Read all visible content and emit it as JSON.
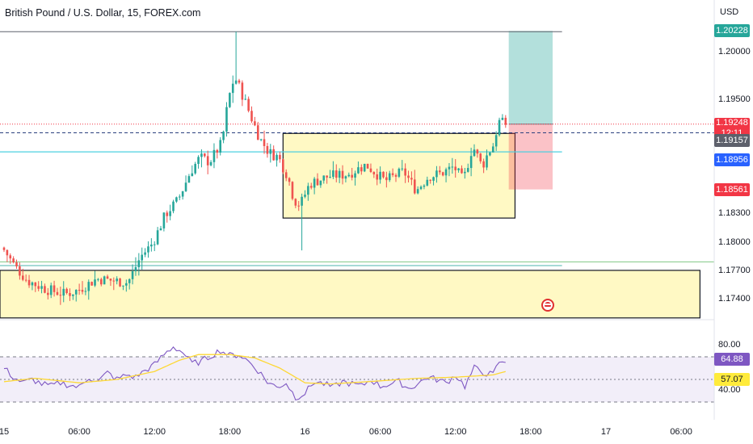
{
  "header": {
    "title": "British Pound / U.S. Dollar, 15, FOREX.com",
    "currency": "USD"
  },
  "price_labels": [
    {
      "value": "1.20228",
      "color": "#26a69a"
    },
    {
      "value": "1.19248",
      "sub": "12:11",
      "color": "#f23645"
    },
    {
      "value": "1.19157",
      "color": "#5d606b"
    },
    {
      "value": "1.18956",
      "color": "#2962ff"
    },
    {
      "value": "1.18561",
      "color": "#f23645"
    },
    {
      "value": "64.88",
      "color": "#7e57c2",
      "text_color": "#ffffff"
    },
    {
      "value": "57.07",
      "color": "#ffeb3b",
      "text_color": "#131722"
    }
  ],
  "chart_data": [
    {
      "type": "candlestick",
      "title": "British Pound / U.S. Dollar, 15, FOREX.com",
      "ylabel": "USD",
      "ylim": [
        1.172,
        1.204
      ],
      "y_ticks": [
        1.2,
        1.195,
        1.183,
        1.18,
        1.177,
        1.174
      ],
      "x_ticks": [
        "15",
        "06:00",
        "12:00",
        "18:00",
        "16",
        "06:00",
        "12:00",
        "18:00",
        "17",
        "06:00"
      ],
      "x_tick_index": [
        0,
        24,
        48,
        72,
        96,
        120,
        144,
        168,
        192,
        216
      ],
      "anchors": [
        [
          0,
          1.1795
        ],
        [
          4,
          1.1775
        ],
        [
          8,
          1.176
        ],
        [
          14,
          1.1751
        ],
        [
          20,
          1.1746
        ],
        [
          24,
          1.175
        ],
        [
          30,
          1.1762
        ],
        [
          36,
          1.176
        ],
        [
          40,
          1.1758
        ],
        [
          44,
          1.1785
        ],
        [
          48,
          1.18
        ],
        [
          52,
          1.183
        ],
        [
          56,
          1.1845
        ],
        [
          60,
          1.1875
        ],
        [
          63,
          1.189
        ],
        [
          66,
          1.1885
        ],
        [
          70,
          1.1905
        ],
        [
          72,
          1.195
        ],
        [
          74,
          1.1975
        ],
        [
          76,
          1.196
        ],
        [
          79,
          1.1935
        ],
        [
          82,
          1.191
        ],
        [
          85,
          1.1895
        ],
        [
          88,
          1.189
        ],
        [
          91,
          1.187
        ],
        [
          93,
          1.1845
        ],
        [
          95,
          1.184
        ],
        [
          98,
          1.1862
        ],
        [
          104,
          1.187
        ],
        [
          110,
          1.1872
        ],
        [
          116,
          1.1882
        ],
        [
          122,
          1.1865
        ],
        [
          128,
          1.1875
        ],
        [
          132,
          1.1855
        ],
        [
          136,
          1.187
        ],
        [
          140,
          1.1873
        ],
        [
          144,
          1.188
        ],
        [
          147,
          1.1865
        ],
        [
          150,
          1.1902
        ],
        [
          153,
          1.188
        ],
        [
          155,
          1.1895
        ],
        [
          157,
          1.1905
        ],
        [
          158,
          1.1928
        ],
        [
          160,
          1.1925
        ]
      ],
      "levels": {
        "high_line": 1.2022,
        "current_price": 1.19248,
        "dashed_level": 1.19157,
        "cyan_level": 1.18956,
        "green_line_1": 1.178,
        "green_line_2": 1.1776
      },
      "zones": [
        {
          "name": "range box",
          "x0": 89,
          "x1": 163,
          "y_top": 1.1915,
          "y_bottom": 1.1826,
          "color": "#fff59d"
        },
        {
          "name": "support zone",
          "x0": 0,
          "x1": 222,
          "y_top": 1.1771,
          "y_bottom": 1.1721,
          "color": "#fff59d"
        }
      ],
      "position": {
        "x0": 161,
        "x1": 175,
        "entry": 1.19248,
        "target": 1.20228,
        "stop": 1.18561
      },
      "axis_range": [
        0,
        222
      ]
    },
    {
      "type": "line",
      "name": "RSI",
      "ylim": [
        20,
        100
      ],
      "y_ticks": [
        80,
        40
      ],
      "band": [
        30,
        70
      ],
      "mid": 50,
      "rsi_anchors": [
        [
          0,
          60
        ],
        [
          3,
          52
        ],
        [
          6,
          47
        ],
        [
          9,
          50
        ],
        [
          12,
          46
        ],
        [
          15,
          44
        ],
        [
          18,
          47
        ],
        [
          21,
          45
        ],
        [
          24,
          43
        ],
        [
          27,
          52
        ],
        [
          30,
          48
        ],
        [
          33,
          56
        ],
        [
          36,
          50
        ],
        [
          39,
          54
        ],
        [
          42,
          52
        ],
        [
          45,
          58
        ],
        [
          48,
          63
        ],
        [
          51,
          72
        ],
        [
          54,
          79
        ],
        [
          57,
          74
        ],
        [
          60,
          64
        ],
        [
          63,
          66
        ],
        [
          66,
          71
        ],
        [
          69,
          76
        ],
        [
          72,
          71
        ],
        [
          75,
          72
        ],
        [
          78,
          66
        ],
        [
          81,
          58
        ],
        [
          84,
          48
        ],
        [
          87,
          43
        ],
        [
          90,
          47
        ],
        [
          93,
          34
        ],
        [
          96,
          38
        ],
        [
          99,
          48
        ],
        [
          102,
          46
        ],
        [
          105,
          43
        ],
        [
          108,
          48
        ],
        [
          111,
          46
        ],
        [
          114,
          44
        ],
        [
          117,
          50
        ],
        [
          120,
          44
        ],
        [
          123,
          46
        ],
        [
          126,
          48
        ],
        [
          129,
          42
        ],
        [
          132,
          46
        ],
        [
          135,
          52
        ],
        [
          138,
          50
        ],
        [
          141,
          47
        ],
        [
          144,
          54
        ],
        [
          147,
          44
        ],
        [
          150,
          60
        ],
        [
          153,
          56
        ],
        [
          156,
          54
        ],
        [
          158,
          66
        ],
        [
          160,
          65
        ]
      ],
      "ma_anchors": [
        [
          0,
          48
        ],
        [
          10,
          51
        ],
        [
          24,
          47
        ],
        [
          36,
          50
        ],
        [
          48,
          57
        ],
        [
          56,
          67
        ],
        [
          62,
          72
        ],
        [
          72,
          72
        ],
        [
          80,
          69
        ],
        [
          88,
          60
        ],
        [
          96,
          47
        ],
        [
          104,
          46
        ],
        [
          116,
          48
        ],
        [
          132,
          51
        ],
        [
          144,
          52
        ],
        [
          156,
          54
        ],
        [
          160,
          57
        ]
      ]
    }
  ]
}
